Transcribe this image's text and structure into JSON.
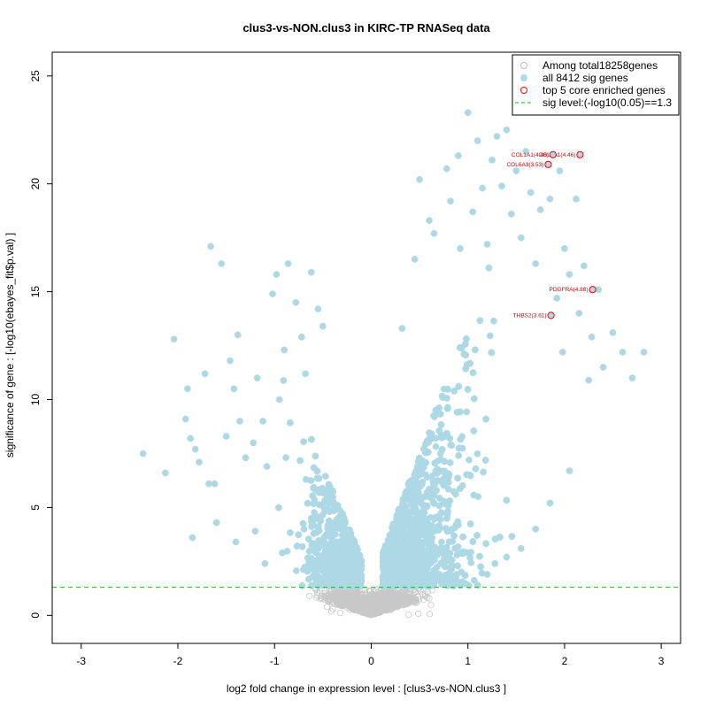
{
  "chart_data": {
    "type": "scatter",
    "title": "clus3-vs-NON.clus3 in KIRC-TP RNASeq data",
    "xlabel": "log2 fold change in expression level : [clus3-vs-NON.clus3 ]",
    "ylabel": "significance of gene : [-log10(ebayes_fit$p.val) ]",
    "xlim": [
      -3.3,
      3.2
    ],
    "ylim": [
      -1.3,
      26.1
    ],
    "x_ticks": [
      -3,
      -2,
      -1,
      0,
      1,
      2,
      3
    ],
    "y_ticks": [
      0,
      5,
      10,
      15,
      20,
      25
    ],
    "grid": false,
    "legend_position": "top-right",
    "legend": [
      {
        "label": "Among total18258genes",
        "marker": "open-circle",
        "color": "#bebebe"
      },
      {
        "label": "all 8412 sig genes",
        "marker": "filled-circle",
        "color": "#add8e6"
      },
      {
        "label": "top 5 core enriched genes",
        "marker": "open-circle",
        "color": "#ff0000"
      },
      {
        "label": "sig level:(-log10(0.05)==1.3",
        "marker": "dashed-line",
        "color": "#00cc00"
      }
    ],
    "sig_level": 1.3,
    "colors": {
      "nonsig": "#c8c8c8",
      "sig": "#add8e6",
      "top": "#ff0000",
      "sigline": "#00cc00",
      "toplabel": "#cc0000"
    },
    "top_genes": [
      {
        "label": "COL5A1(4.46)",
        "x": 2.16,
        "y": 21.35
      },
      {
        "label": "COL1A1(4.46)",
        "x": 1.88,
        "y": 21.35
      },
      {
        "label": "COL6A3(3.53)",
        "x": 1.83,
        "y": 20.9
      },
      {
        "label": "PDGFRA(4.88)",
        "x": 2.29,
        "y": 15.1
      },
      {
        "label": "THBS2(3.61)",
        "x": 1.86,
        "y": 13.9
      }
    ],
    "sig_points": [
      [
        -2.36,
        7.5
      ],
      [
        -2.13,
        6.6
      ],
      [
        -2.04,
        12.8
      ],
      [
        -1.92,
        9.1
      ],
      [
        -1.9,
        10.5
      ],
      [
        -1.87,
        8.2
      ],
      [
        -1.82,
        7.7
      ],
      [
        -1.78,
        7.1
      ],
      [
        -1.72,
        11.2
      ],
      [
        -1.68,
        6.1
      ],
      [
        -1.66,
        17.1
      ],
      [
        -1.62,
        6.1
      ],
      [
        -1.55,
        16.3
      ],
      [
        -1.5,
        8.3
      ],
      [
        -1.46,
        11.8
      ],
      [
        -1.42,
        10.5
      ],
      [
        -1.38,
        13.0
      ],
      [
        -1.36,
        9.0
      ],
      [
        -1.3,
        7.3
      ],
      [
        -1.22,
        8.0
      ],
      [
        -1.18,
        11.0
      ],
      [
        -1.12,
        9.0
      ],
      [
        -1.08,
        6.9
      ],
      [
        -1.02,
        14.9
      ],
      [
        -0.98,
        15.8
      ],
      [
        -0.95,
        10.0
      ],
      [
        -0.9,
        12.3
      ],
      [
        -0.86,
        16.3
      ],
      [
        -0.78,
        14.5
      ],
      [
        -0.72,
        12.9
      ],
      [
        -0.68,
        11.2
      ],
      [
        -0.62,
        15.9
      ],
      [
        -0.55,
        14.2
      ],
      [
        -0.5,
        13.4
      ],
      [
        -1.85,
        3.6
      ],
      [
        -1.6,
        4.3
      ],
      [
        -1.4,
        3.4
      ],
      [
        -1.2,
        3.9
      ],
      [
        -1.1,
        2.4
      ],
      [
        -0.92,
        2.9
      ],
      [
        0.32,
        13.3
      ],
      [
        0.45,
        16.5
      ],
      [
        0.5,
        20.2
      ],
      [
        0.6,
        18.3
      ],
      [
        0.65,
        17.7
      ],
      [
        0.78,
        20.7
      ],
      [
        0.82,
        19.2
      ],
      [
        0.9,
        21.3
      ],
      [
        0.92,
        17.0
      ],
      [
        1.0,
        23.3
      ],
      [
        1.05,
        18.7
      ],
      [
        1.1,
        22.0
      ],
      [
        1.15,
        19.8
      ],
      [
        1.2,
        17.2
      ],
      [
        1.25,
        21.1
      ],
      [
        1.3,
        22.2
      ],
      [
        1.35,
        19.9
      ],
      [
        1.4,
        22.5
      ],
      [
        1.45,
        18.6
      ],
      [
        1.5,
        20.6
      ],
      [
        1.55,
        17.5
      ],
      [
        1.6,
        21.5
      ],
      [
        1.65,
        19.6
      ],
      [
        1.7,
        16.3
      ],
      [
        1.75,
        18.8
      ],
      [
        1.82,
        23.4
      ],
      [
        1.85,
        19.3
      ],
      [
        1.95,
        20.6
      ],
      [
        2.0,
        17.0
      ],
      [
        2.05,
        15.8
      ],
      [
        2.12,
        19.3
      ],
      [
        2.15,
        14.0
      ],
      [
        2.2,
        16.2
      ],
      [
        2.25,
        10.9
      ],
      [
        2.28,
        12.9
      ],
      [
        2.35,
        15.1
      ],
      [
        2.4,
        11.5
      ],
      [
        2.5,
        13.1
      ],
      [
        2.6,
        12.2
      ],
      [
        2.7,
        11.0
      ],
      [
        2.82,
        12.2
      ],
      [
        2.05,
        6.7
      ],
      [
        1.85,
        5.2
      ],
      [
        1.7,
        4.0
      ],
      [
        1.55,
        3.1
      ],
      [
        1.4,
        2.7
      ],
      [
        1.28,
        2.4
      ],
      [
        1.2,
        1.9
      ],
      [
        1.98,
        12.2
      ],
      [
        1.92,
        14.7
      ]
    ]
  }
}
